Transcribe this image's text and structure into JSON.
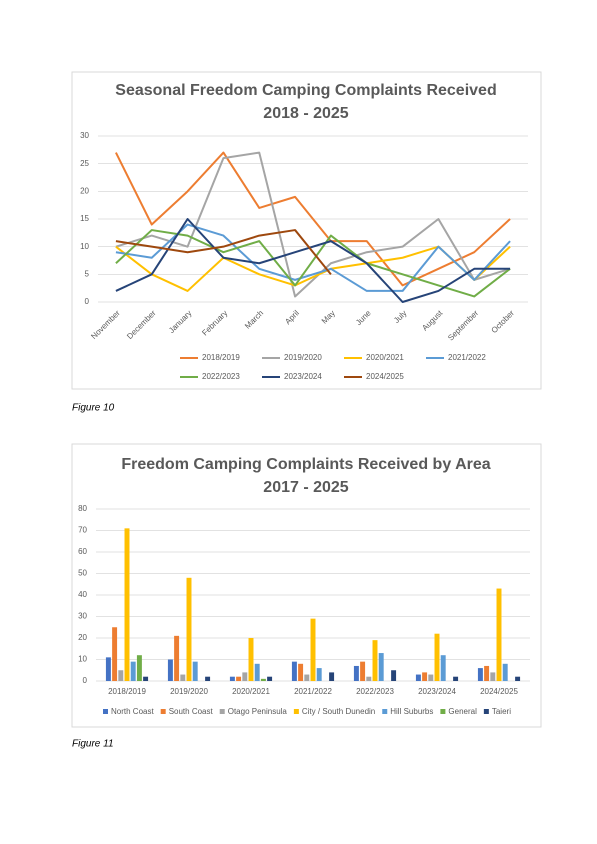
{
  "chart_data": [
    {
      "type": "line",
      "title": [
        "Seasonal Freedom Camping Complaints Received",
        "2018 - 2025"
      ],
      "caption": "Figure 10",
      "categories": [
        "November",
        "December",
        "January",
        "February",
        "March",
        "April",
        "May",
        "June",
        "July",
        "August",
        "September",
        "October"
      ],
      "ylim": [
        0,
        30
      ],
      "yticks": [
        0,
        5,
        10,
        15,
        20,
        25,
        30
      ],
      "grid": true,
      "legend": "bottom",
      "series": [
        {
          "name": "2018/2019",
          "color": "#ed7d31",
          "values": [
            27,
            14,
            20,
            27,
            17,
            19,
            11,
            11,
            3,
            6,
            9,
            15
          ]
        },
        {
          "name": "2019/2020",
          "color": "#a5a5a5",
          "values": [
            10,
            12,
            10,
            26,
            27,
            1,
            7,
            9,
            10,
            15,
            4,
            6
          ]
        },
        {
          "name": "2020/2021",
          "color": "#ffc000",
          "values": [
            10,
            5,
            2,
            8,
            5,
            3,
            6,
            7,
            8,
            10,
            4,
            10
          ]
        },
        {
          "name": "2021/2022",
          "color": "#5b9bd5",
          "values": [
            9,
            8,
            14,
            12,
            6,
            4,
            6,
            2,
            2,
            10,
            4,
            11
          ]
        },
        {
          "name": "2022/2023",
          "color": "#70ad47",
          "values": [
            7,
            13,
            12,
            9,
            11,
            3,
            12,
            7,
            5,
            3,
            1,
            6
          ]
        },
        {
          "name": "2023/2024",
          "color": "#264478",
          "values": [
            2,
            5,
            15,
            8,
            7,
            9,
            11,
            7,
            0,
            2,
            6,
            6
          ]
        },
        {
          "name": "2024/2025",
          "color": "#9e480e",
          "values": [
            11,
            10,
            9,
            10,
            12,
            13,
            5,
            null,
            null,
            null,
            null,
            null
          ]
        }
      ]
    },
    {
      "type": "bar",
      "title": [
        "Freedom Camping Complaints Received by Area",
        "2017 - 2025"
      ],
      "caption": "Figure 11",
      "categories": [
        "2018/2019",
        "2019/2020",
        "2020/2021",
        "2021/2022",
        "2022/2023",
        "2023/2024",
        "2024/2025"
      ],
      "ylim": [
        0,
        80
      ],
      "yticks": [
        0,
        10,
        20,
        30,
        40,
        50,
        60,
        70,
        80
      ],
      "grid": true,
      "legend": "bottom",
      "series": [
        {
          "name": "North Coast",
          "color": "#4472c4",
          "values": [
            11,
            10,
            2,
            9,
            7,
            3,
            6
          ]
        },
        {
          "name": "South Coast",
          "color": "#ed7d31",
          "values": [
            25,
            21,
            2,
            8,
            9,
            4,
            7
          ]
        },
        {
          "name": "Otago Peninsula",
          "color": "#a5a5a5",
          "values": [
            5,
            3,
            4,
            3,
            2,
            3,
            4
          ]
        },
        {
          "name": "City / South Dunedin",
          "color": "#ffc000",
          "values": [
            71,
            48,
            20,
            29,
            19,
            22,
            43
          ]
        },
        {
          "name": "Hill Suburbs",
          "color": "#5b9bd5",
          "values": [
            9,
            9,
            8,
            6,
            13,
            12,
            8
          ]
        },
        {
          "name": "General",
          "color": "#70ad47",
          "values": [
            12,
            0,
            1,
            0,
            0,
            0,
            0
          ]
        },
        {
          "name": "Taieri",
          "color": "#264478",
          "values": [
            2,
            2,
            2,
            4,
            5,
            2,
            2
          ]
        }
      ]
    }
  ]
}
